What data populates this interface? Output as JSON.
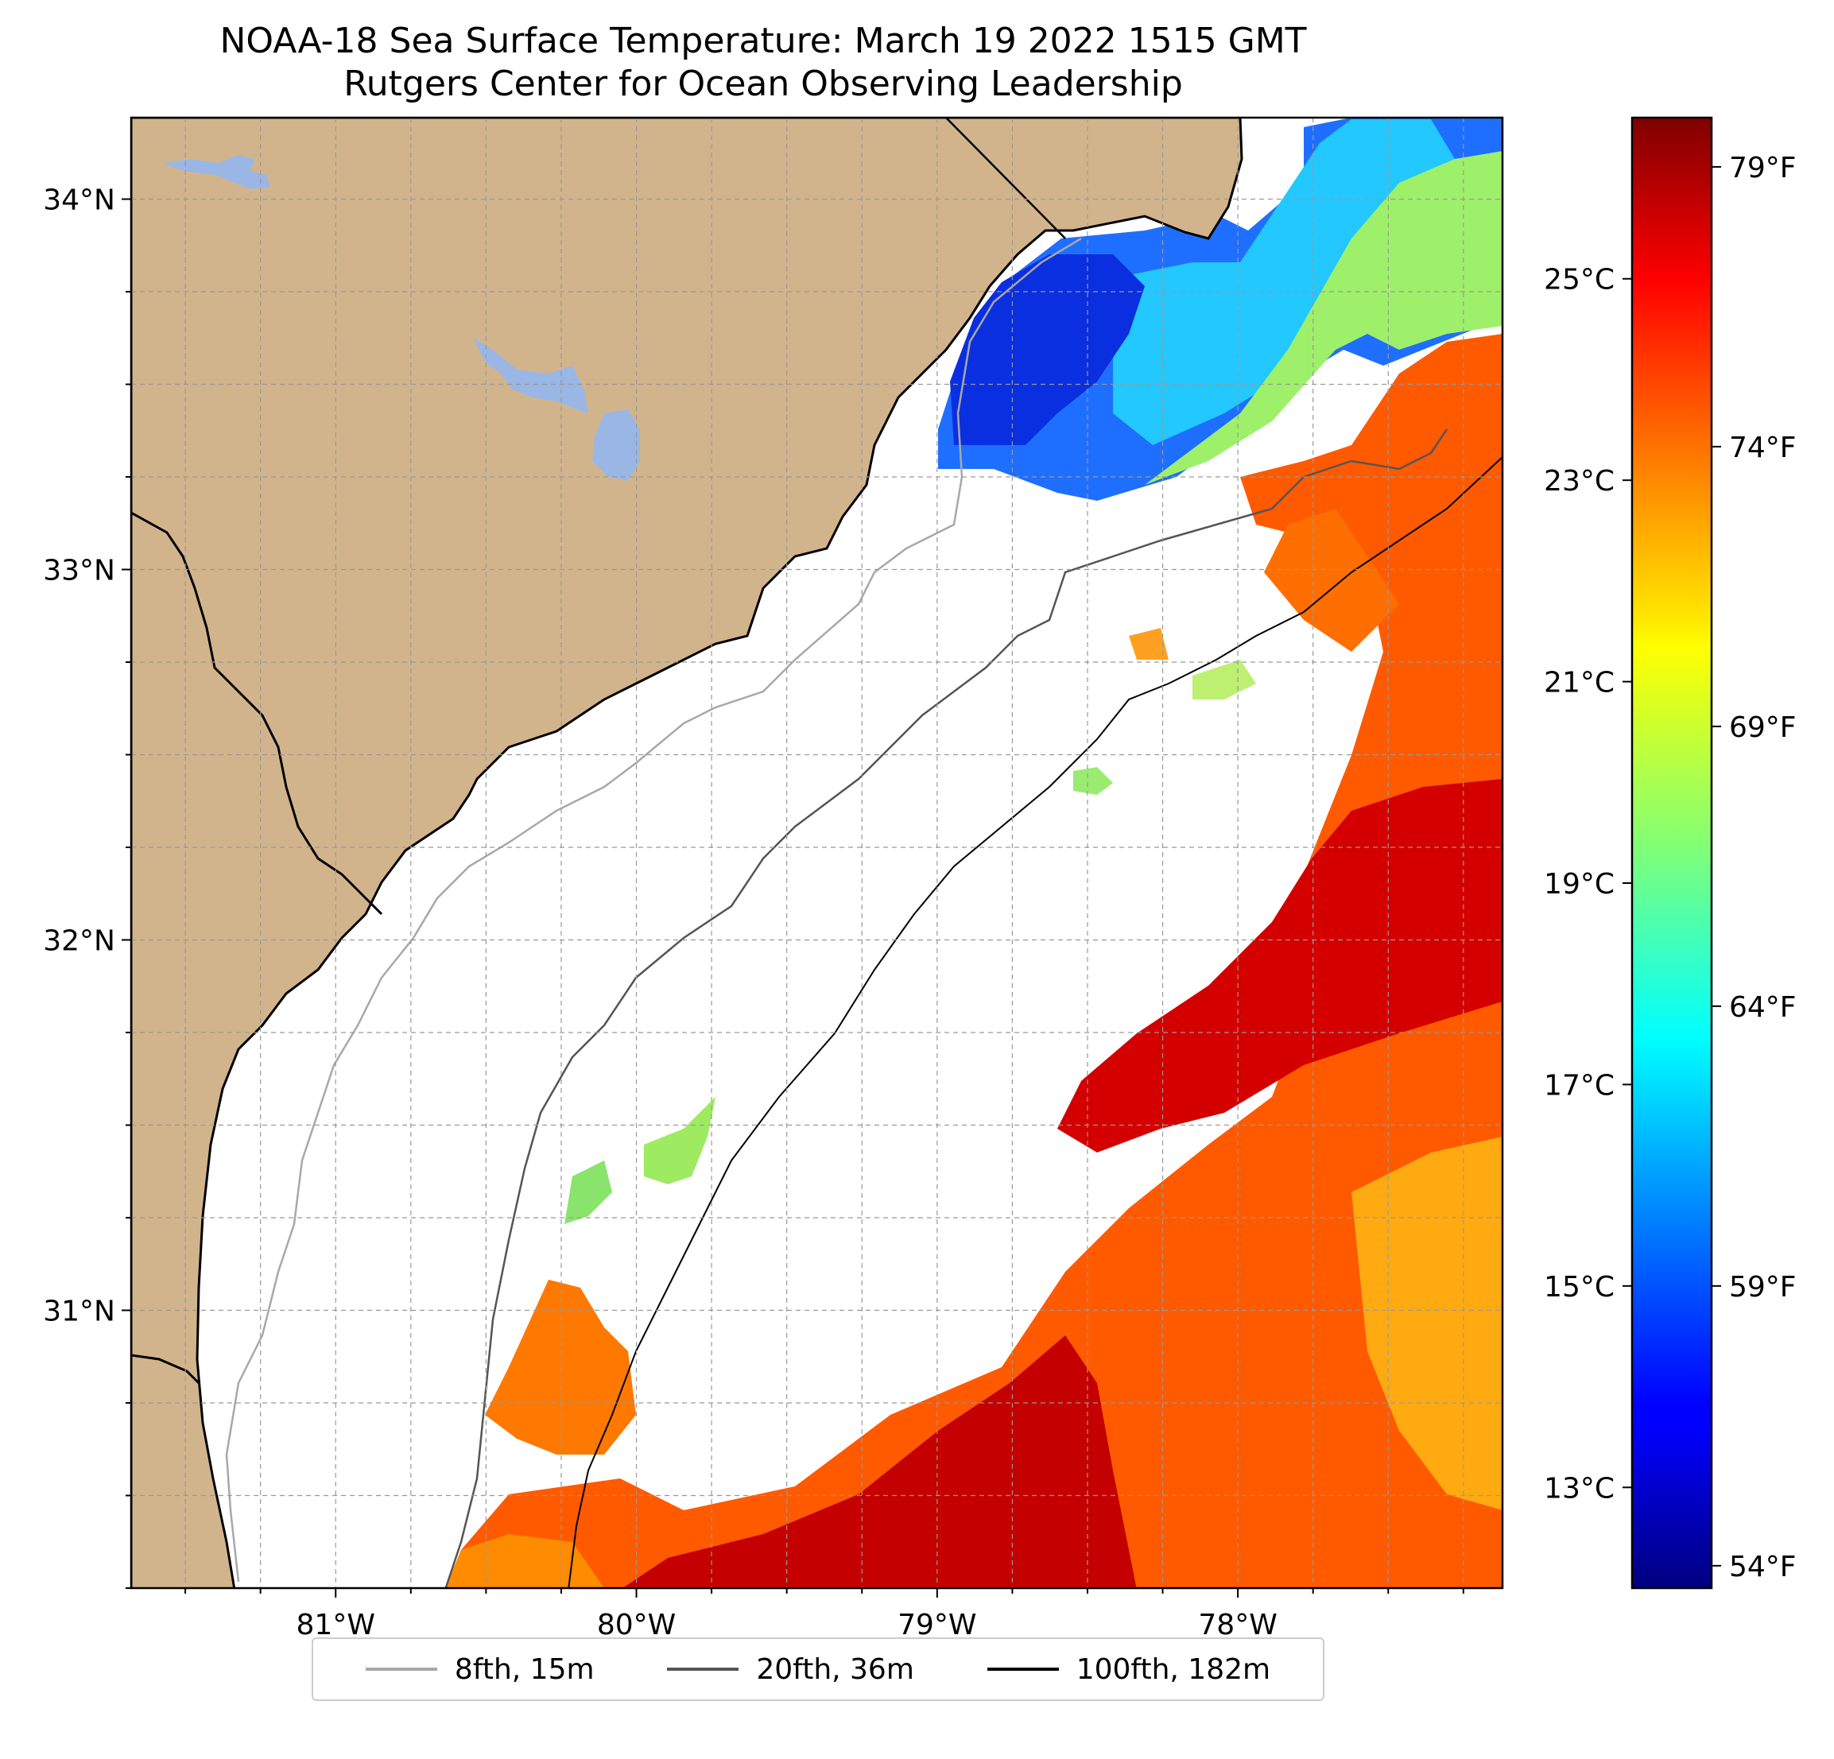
{
  "title_line1": "NOAA-18 Sea Surface Temperature: March 19 2022 1515 GMT",
  "title_line2": "Rutgers Center for Ocean Observing Leadership",
  "map": {
    "lon_range": [
      -81.68,
      -77.12
    ],
    "lat_range": [
      30.25,
      34.22
    ],
    "lon_ticks": [
      {
        "value": -81,
        "label": "81°W"
      },
      {
        "value": -80,
        "label": "80°W"
      },
      {
        "value": -79,
        "label": "79°W"
      },
      {
        "value": -78,
        "label": "78°W"
      }
    ],
    "lat_ticks": [
      {
        "value": 34,
        "label": "34°N"
      },
      {
        "value": 33,
        "label": "33°N"
      },
      {
        "value": 32,
        "label": "32°N"
      },
      {
        "value": 31,
        "label": "31°N"
      }
    ],
    "gridlines": "dashed",
    "colors": {
      "land": "#d2b48c",
      "lakes": "#9ab6e4",
      "no_data": "#ffffff"
    }
  },
  "colorbar": {
    "colormap": "jet",
    "range_celsius": [
      12.0,
      26.6
    ],
    "celsius_ticks": [
      {
        "value": 13,
        "label": "13°C"
      },
      {
        "value": 15,
        "label": "15°C"
      },
      {
        "value": 17,
        "label": "17°C"
      },
      {
        "value": 19,
        "label": "19°C"
      },
      {
        "value": 21,
        "label": "21°C"
      },
      {
        "value": 23,
        "label": "23°C"
      },
      {
        "value": 25,
        "label": "25°C"
      }
    ],
    "fahrenheit_ticks": [
      {
        "value": 54,
        "label": "54°F"
      },
      {
        "value": 59,
        "label": "59°F"
      },
      {
        "value": 64,
        "label": "64°F"
      },
      {
        "value": 69,
        "label": "69°F"
      },
      {
        "value": 74,
        "label": "74°F"
      },
      {
        "value": 79,
        "label": "79°F"
      }
    ]
  },
  "legend": {
    "placement": "bottom-center",
    "items": [
      {
        "label": "8fth, 15m",
        "color": "#a8a8a8"
      },
      {
        "label": "20fth, 36m",
        "color": "#555555"
      },
      {
        "label": "100fth, 182m",
        "color": "#000000"
      }
    ]
  }
}
